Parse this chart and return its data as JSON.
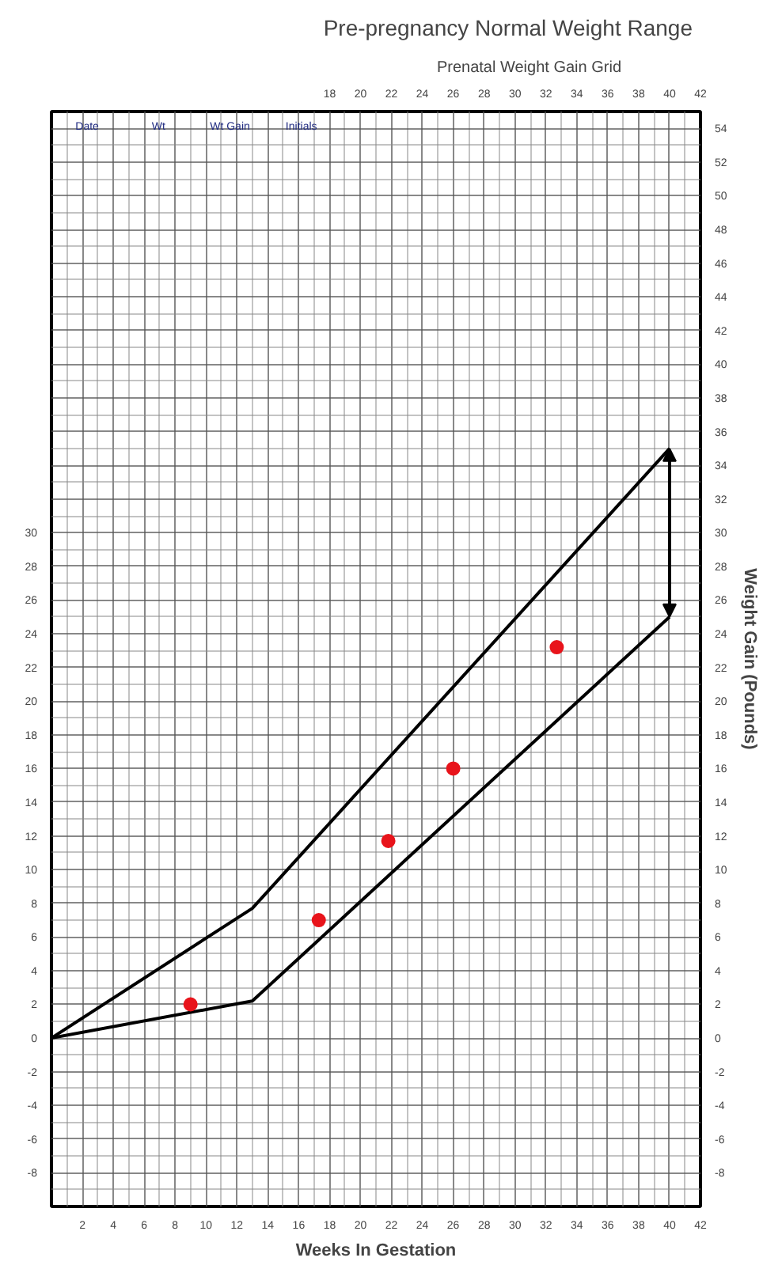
{
  "chart_data": {
    "type": "line",
    "title": "Pre-pregnancy Normal Weight Range",
    "subtitle": "Prenatal Weight Gain Grid",
    "xlabel": "Weeks In Gestation",
    "y2label": "Weight Gain (Pounds)",
    "annotations": [
      "Date",
      "Wt",
      "Wt Gain",
      "Initials"
    ],
    "series": [
      {
        "color": "#000000",
        "x": [
          0,
          13,
          40
        ],
        "values": [
          0,
          7.7,
          35
        ]
      },
      {
        "color": "#000000",
        "x": [
          0,
          13,
          40
        ],
        "values": [
          0,
          2.2,
          25
        ]
      },
      {
        "type": "scatter",
        "marker": "circle",
        "color": "#e8141b",
        "x": [
          9,
          17.3,
          21.8,
          26,
          32.7
        ],
        "values": [
          2,
          7,
          11.7,
          16,
          23.2
        ]
      }
    ],
    "line_style": "solid",
    "grid": true,
    "xlim": [
      0,
      42
    ],
    "xticks": [
      2,
      4,
      6,
      8,
      10,
      12,
      14,
      16,
      18,
      20,
      22,
      24,
      26,
      28,
      30,
      32,
      34,
      36,
      38,
      40,
      42
    ],
    "x2lim": [
      0,
      42
    ],
    "x2ticks": [
      18,
      20,
      22,
      24,
      26,
      28,
      30,
      32,
      34,
      36,
      38,
      40,
      42
    ],
    "ylim": [
      -10,
      55
    ],
    "yticks": [
      -8,
      -6,
      -4,
      -2,
      0,
      2,
      4,
      6,
      8,
      10,
      12,
      14,
      16,
      18,
      20,
      22,
      24,
      26,
      28,
      30
    ],
    "y2lim": [
      -10,
      55
    ],
    "y2ticks": [
      -8,
      -6,
      -4,
      -2,
      0,
      2,
      4,
      6,
      8,
      10,
      12,
      14,
      16,
      18,
      20,
      22,
      24,
      26,
      28,
      30,
      32,
      34,
      36,
      38,
      40,
      42,
      44,
      46,
      48,
      50,
      52,
      54
    ]
  }
}
